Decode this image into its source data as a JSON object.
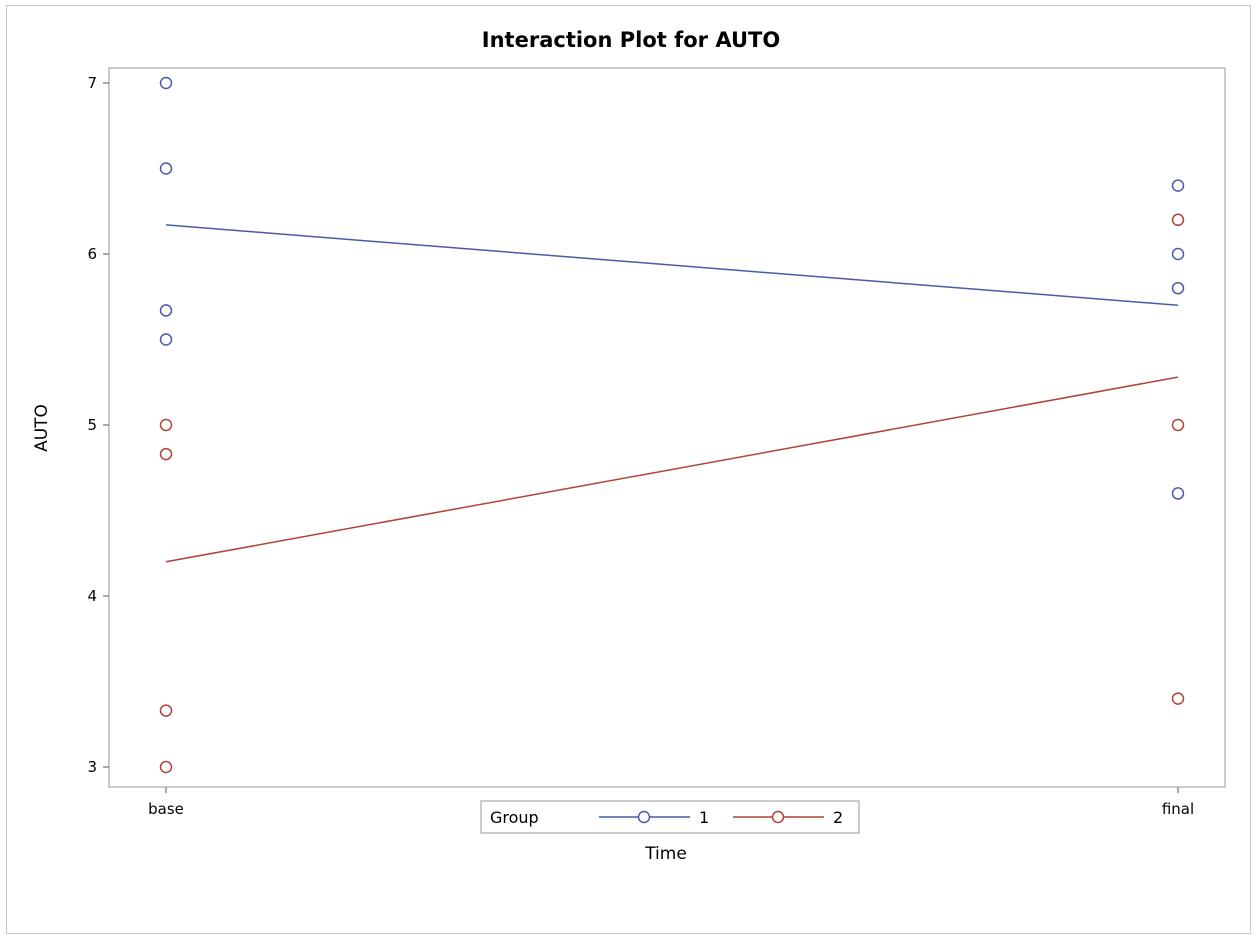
{
  "chart_data": {
    "type": "line",
    "title": "Interaction Plot for AUTO",
    "xlabel": "Time",
    "ylabel": "AUTO",
    "categories": [
      "base",
      "final"
    ],
    "ylim": [
      3,
      7
    ],
    "yticks": [
      "3",
      "4",
      "5",
      "6",
      "7"
    ],
    "grid": false,
    "legend": {
      "title": "Group",
      "placement": "bottom-center",
      "entries": [
        "1",
        "2"
      ]
    },
    "series": [
      {
        "name": "1",
        "color": "#4a5ba6",
        "line": [
          6.17,
          5.7
        ],
        "points": {
          "base": [
            7.0,
            6.5,
            5.67,
            5.5
          ],
          "final": [
            6.4,
            6.0,
            5.8,
            4.6
          ]
        }
      },
      {
        "name": "2",
        "color": "#b0433a",
        "line": [
          4.2,
          5.28
        ],
        "points": {
          "base": [
            5.0,
            4.83,
            3.33,
            3.0
          ],
          "final": [
            6.2,
            5.0,
            3.4
          ]
        }
      }
    ]
  }
}
